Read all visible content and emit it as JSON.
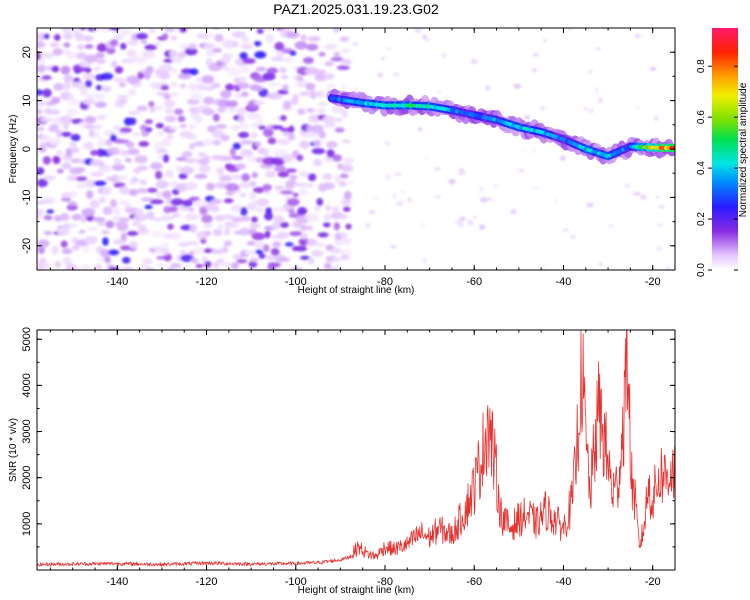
{
  "title": "PAZ1.2025.031.19.23.G02",
  "colors": {
    "snr_line": "#e8312e",
    "spectrogram_colormap": "rainbow (white/lavender low → violet → blue → cyan → green → yellow → orange → red/magenta high)"
  },
  "chart_data": [
    {
      "type": "heatmap",
      "title": "PAZ1.2025.031.19.23.G02",
      "xlabel": "Height of straight line (km)",
      "ylabel": "Frequency (Hz)",
      "xlim": [
        -158,
        -15
      ],
      "ylim": [
        -25,
        25
      ],
      "xticks": [
        "-140",
        "-120",
        "-100",
        "-80",
        "-60",
        "-40",
        "-20"
      ],
      "yticks": [
        "-20",
        "-10",
        "0",
        "10",
        "20"
      ],
      "colorbar": {
        "label": "Normalized spectral amplitude",
        "range": [
          0,
          0.95
        ],
        "ticks": [
          "0.0",
          "0.2",
          "0.4",
          "0.6",
          "0.8"
        ]
      },
      "ridge": {
        "x": [
          -92,
          -85,
          -80,
          -75,
          -70,
          -65,
          -60,
          -55,
          -50,
          -45,
          -40,
          -35,
          -30,
          -25,
          -20,
          -15
        ],
        "frequency": [
          10.5,
          9.5,
          9,
          9,
          8.8,
          8,
          7,
          6,
          4.5,
          3.5,
          2,
          0,
          -1.5,
          0.5,
          0.3,
          0.2
        ],
        "peak_amplitude": [
          0.35,
          0.45,
          0.5,
          0.55,
          0.5,
          0.4,
          0.35,
          0.4,
          0.45,
          0.45,
          0.35,
          0.45,
          0.45,
          0.35,
          0.8,
          0.9
        ]
      },
      "grid": false
    },
    {
      "type": "line",
      "xlabel": "Height of straight line (km)",
      "ylabel": "SNR (10 * v/v)",
      "xlim": [
        -158,
        -15
      ],
      "ylim": [
        0,
        5200
      ],
      "xticks": [
        "-140",
        "-120",
        "-100",
        "-80",
        "-60",
        "-40",
        "-20"
      ],
      "yticks": [
        "1000",
        "2000",
        "3000",
        "4000",
        "5000"
      ],
      "series": [
        {
          "x": [
            -158,
            -150,
            -140,
            -130,
            -120,
            -110,
            -100,
            -95,
            -90,
            -88,
            -86,
            -84,
            -82,
            -80,
            -78,
            -75,
            -72,
            -70,
            -68,
            -65,
            -62,
            -60,
            -58,
            -57,
            -56,
            -55,
            -54,
            -52,
            -50,
            -48,
            -46,
            -44,
            -42,
            -40,
            -38,
            -37,
            -36,
            -35,
            -34,
            -33,
            -32,
            -31,
            -30,
            -29,
            -28,
            -27,
            -26,
            -25.5,
            -25,
            -24,
            -23,
            -22,
            -21,
            -20,
            -19,
            -18,
            -17,
            -16,
            -15
          ],
          "y": [
            120,
            130,
            140,
            120,
            150,
            130,
            140,
            160,
            220,
            280,
            500,
            350,
            300,
            500,
            450,
            550,
            800,
            700,
            900,
            750,
            1300,
            1800,
            2600,
            3250,
            2700,
            2000,
            1200,
            900,
            1100,
            1200,
            1000,
            1300,
            1100,
            900,
            1500,
            2600,
            4600,
            2800,
            1600,
            2700,
            3500,
            2900,
            2300,
            1700,
            1800,
            2600,
            4200,
            5200,
            2200,
            1500,
            500,
            900,
            1800,
            1500,
            1900,
            2100,
            2000,
            2200,
            2100
          ]
        }
      ],
      "grid": false
    }
  ]
}
